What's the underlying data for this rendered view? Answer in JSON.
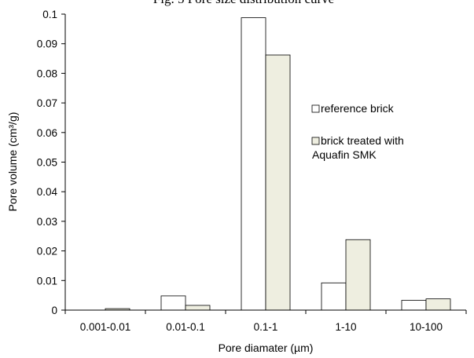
{
  "caption": "Fig. 5 Pore size distribution curve",
  "chart_data": {
    "type": "bar",
    "xlabel": "Pore diamater (µm)",
    "ylabel": "Pore volume (cm³/g)",
    "ylim": [
      0,
      0.1
    ],
    "yticks": [
      "0",
      "0.01",
      "0.02",
      "0.03",
      "0.04",
      "0.05",
      "0.06",
      "0.07",
      "0.08",
      "0.09",
      "0.1"
    ],
    "grid": false,
    "legend_position": "right",
    "categories": [
      "0.001-0.01",
      "0.01-0.1",
      "0.1-1",
      "1-10",
      "10-100"
    ],
    "series": [
      {
        "name": "reference brick",
        "color": "#ffffff",
        "values": [
          0.0,
          0.0048,
          0.0988,
          0.0092,
          0.0033
        ]
      },
      {
        "name_lines": [
          "brick treated with",
          "Aquafin SMK"
        ],
        "color": "#eeeee0",
        "values": [
          0.0005,
          0.0016,
          0.0862,
          0.0238,
          0.0038
        ]
      }
    ]
  }
}
